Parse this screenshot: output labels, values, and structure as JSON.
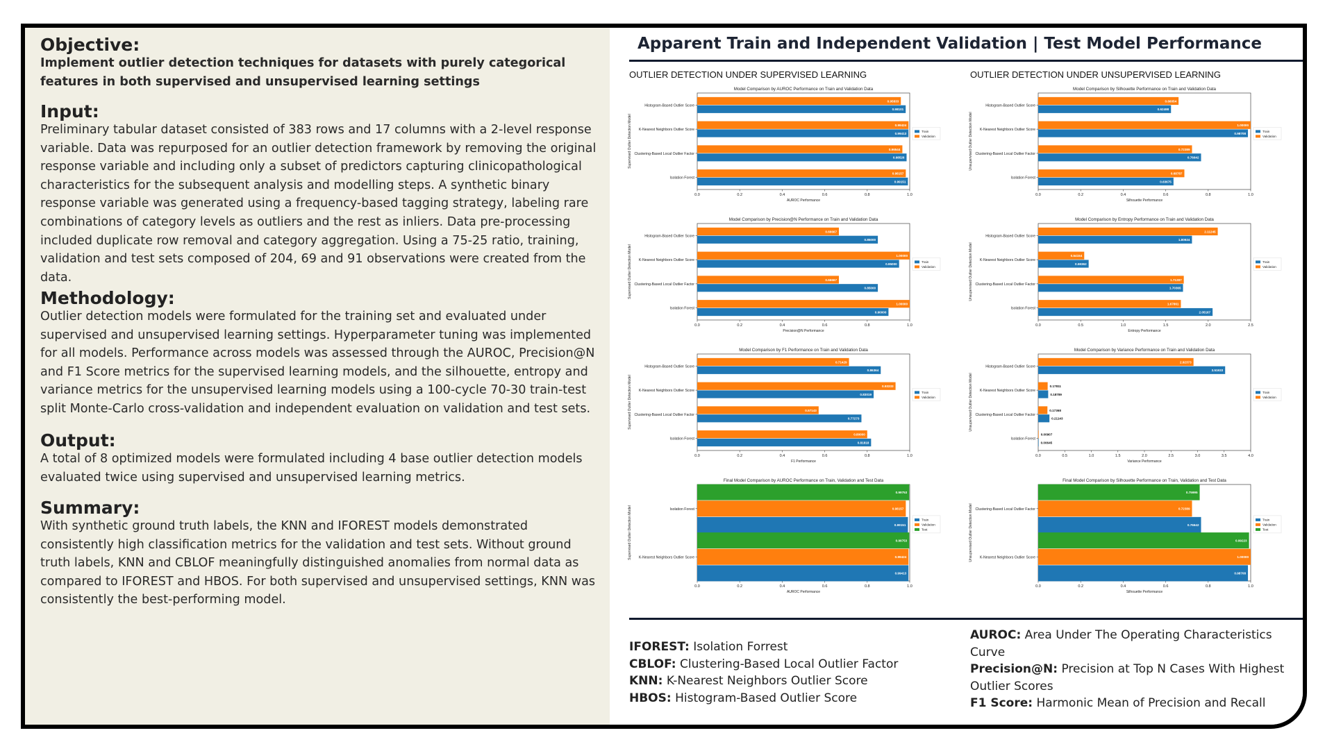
{
  "sections": {
    "objective": {
      "heading": "Objective:",
      "text": "Implement outlier detection techniques for datasets with purely categorical features in both supervised and unsupervised learning settings"
    },
    "input": {
      "heading": "Input:",
      "text": "Preliminary tabular dataset consisted of 383 rows and 17 columns with a 2-level response variable. Data was repurposed for an outlier detection framework by removing the original response variable and including only a subset of predictors capturing clinicopathological characteristics for the subsequent analysis and modelling steps. A synthetic binary response variable was generated using a frequency-based tagging strategy, labeling rare combinations of category levels as outliers and the rest as inliers. Data pre-processing included duplicate row removal and category aggregation. Using a 75-25 ratio, training, validation and test sets composed of 204, 69 and 91 observations were created from the data."
    },
    "methodology": {
      "heading": "Methodology:",
      "text": "Outlier detection models were formulated for the training set and evaluated under supervised and unsupervised learning settings. Hyperparameter tuning was implemented for all models. Performance across models was assessed through the AUROC, Precision@N and F1 Score metrics for the supervised learning models, and the silhouette, entropy and variance metrics for the unsupervised learning models using a 100-cycle 70-30 train-test split Monte-Carlo cross-validation and independent evaluation on validation and test sets."
    },
    "output": {
      "heading": "Output:",
      "text": "A total of 8 optimized models were formulated including 4 base outlier detection models evaluated twice using supervised and unsupervised learning metrics."
    },
    "summary": {
      "heading": "Summary:",
      "text": "With synthetic ground truth labels, the KNN and IFOREST models demonstrated consistently high classification metrics for the validation and test sets. Without ground truth labels, KNN and CBLOF meaningfully distinguished anomalies from normal data as compared to IFOREST and HBOS. For both supervised and unsupervised settings, KNN was consistently the best-performing model."
    }
  },
  "panel": {
    "title": "Apparent Train and Independent Validation | Test Model Performance",
    "supervised_heading": "OUTLIER DETECTION UNDER SUPERVISED LEARNING",
    "unsupervised_heading": "OUTLIER DETECTION UNDER UNSUPERVISED LEARNING"
  },
  "colors": {
    "train": "#1f77b4",
    "validation": "#ff7f0e",
    "test": "#2ca02c"
  },
  "legend_left": [
    {
      "abbr": "IFOREST:",
      "full": "Isolation Forrest"
    },
    {
      "abbr": "CBLOF:",
      "full": "Clustering-Based Local Outlier Factor"
    },
    {
      "abbr": "KNN:",
      "full": "K-Nearest Neighbors Outlier Score"
    },
    {
      "abbr": "HBOS:",
      "full": "Histogram-Based Outlier Score"
    }
  ],
  "legend_right": [
    {
      "abbr": "AUROC:",
      "full": "Area Under The Operating Characteristics Curve"
    },
    {
      "abbr": "Precision@N:",
      "full": "Precision at Top N Cases With Highest Outlier Scores"
    },
    {
      "abbr": "F1 Score:",
      "full": "Harmonic Mean of Precision and Recall"
    }
  ],
  "chart_data": [
    {
      "id": "sup-auroc",
      "type": "bar",
      "orientation": "horizontal",
      "title": "Model Comparison by AUROC Performance on Train and Validation Data",
      "xlabel": "AUROC Performance",
      "ylabel": "Supervised Outlier Detection Model",
      "xlim": [
        0,
        1.0
      ],
      "xticks": [
        0.0,
        0.2,
        0.4,
        0.6,
        0.8,
        1.0
      ],
      "xtick_labels": [
        "0.0",
        "0.2",
        "0.4",
        "0.6",
        "0.8",
        "1.0"
      ],
      "categories": [
        "Histogram-Based Outlier Score",
        "K-Nearest Neighbors Outlier Score",
        "Clustering-Based Local Outlier Factor",
        "Isolation Forest"
      ],
      "series": [
        {
          "name": "Train",
          "values": [
            0.98101,
            0.99413,
            0.98526,
            0.99151
          ],
          "labels": [
            "0.98101",
            "0.99413",
            "0.98526",
            "0.99151"
          ]
        },
        {
          "name": "Validation",
          "values": [
            0.95833,
            0.99424,
            0.96544,
            0.98157
          ],
          "labels": [
            "0.95833",
            "0.99424",
            "0.96544",
            "0.98157"
          ]
        }
      ],
      "legend": "right"
    },
    {
      "id": "unsup-silhouette",
      "type": "bar",
      "orientation": "horizontal",
      "title": "Model Comparison by Silhouette Performance on Train and Validation Data",
      "xlabel": "Silhouette Performance",
      "ylabel": "Unsupervised Outlier Detection Model",
      "xlim": [
        0,
        1.0
      ],
      "xticks": [
        0.0,
        0.2,
        0.4,
        0.6,
        0.8,
        1.0
      ],
      "xtick_labels": [
        "0.0",
        "0.2",
        "0.4",
        "0.6",
        "0.8",
        "1.0"
      ],
      "categories": [
        "Histogram-Based Outlier Score",
        "K-Nearest Neighbors Outlier Score",
        "Clustering-Based Local Outlier Factor",
        "Isolation Forest"
      ],
      "series": [
        {
          "name": "Train",
          "values": [
            0.62498,
            0.98708,
            0.76642,
            0.63675
          ],
          "labels": [
            "0.62498",
            "0.98708",
            "0.76642",
            "0.63675"
          ]
        },
        {
          "name": "Validation",
          "values": [
            0.66054,
            1.0,
            0.72389,
            0.68787
          ],
          "labels": [
            "0.66054",
            "1.00000",
            "0.72389",
            "0.68787"
          ]
        }
      ],
      "legend": "right"
    },
    {
      "id": "sup-precision",
      "type": "bar",
      "orientation": "horizontal",
      "title": "Model Comparison by Precision@N Performance on Train and Validation Data",
      "xlabel": "Precision@N Performance",
      "ylabel": "Supervised Outlier Detection Model",
      "xlim": [
        0,
        1.0
      ],
      "xticks": [
        0.0,
        0.2,
        0.4,
        0.6,
        0.8,
        1.0
      ],
      "xtick_labels": [
        "0.0",
        "0.2",
        "0.4",
        "0.6",
        "0.8",
        "1.0"
      ],
      "categories": [
        "Histogram-Based Outlier Score",
        "K-Nearest Neighbors Outlier Score",
        "Clustering-Based Local Outlier Factor",
        "Isolation Forest"
      ],
      "series": [
        {
          "name": "Train",
          "values": [
            0.85,
            0.95,
            0.85,
            0.9
          ],
          "labels": [
            "0.85000",
            "0.95000",
            "0.85000",
            "0.90000"
          ]
        },
        {
          "name": "Validation",
          "values": [
            0.66667,
            1.0,
            0.66667,
            1.0
          ],
          "labels": [
            "0.66667",
            "1.00000",
            "0.66667",
            "1.00000"
          ]
        }
      ],
      "legend": "right"
    },
    {
      "id": "unsup-entropy",
      "type": "bar",
      "orientation": "horizontal",
      "title": "Model Comparison by Entropy Performance on Train and Validation Data",
      "xlabel": "Entropy Performance",
      "ylabel": "Unsupervised Outlier Detection Model",
      "xlim": [
        0,
        2.5
      ],
      "xticks": [
        0.0,
        0.5,
        1.0,
        1.5,
        2.0,
        2.5
      ],
      "xtick_labels": [
        "0.0",
        "0.5",
        "1.0",
        "1.5",
        "2.0",
        "2.5"
      ],
      "categories": [
        "Histogram-Based Outlier Score",
        "K-Nearest Neighbors Outlier Score",
        "Clustering-Based Local Outlier Factor",
        "Isolation Forest"
      ],
      "series": [
        {
          "name": "Train",
          "values": [
            1.80924,
            0.59362,
            1.70365,
            2.05167
          ],
          "labels": [
            "1.80924",
            "0.59362",
            "1.70365",
            "2.05167"
          ]
        },
        {
          "name": "Validation",
          "values": [
            2.11245,
            0.54154,
            1.71287,
            1.67861
          ],
          "labels": [
            "2.11245",
            "0.54154",
            "1.71287",
            "1.67861"
          ]
        }
      ],
      "legend": "right"
    },
    {
      "id": "sup-f1",
      "type": "bar",
      "orientation": "horizontal",
      "title": "Model Comparison by F1 Performance on Train and Validation Data",
      "xlabel": "F1 Performance",
      "ylabel": "Supervised Outlier Detection Model",
      "xlim": [
        0,
        1.0
      ],
      "xticks": [
        0.0,
        0.2,
        0.4,
        0.6,
        0.8,
        1.0
      ],
      "xtick_labels": [
        "0.0",
        "0.2",
        "0.4",
        "0.6",
        "0.8",
        "1.0"
      ],
      "categories": [
        "Histogram-Based Outlier Score",
        "K-Nearest Neighbors Outlier Score",
        "Clustering-Based Local Outlier Factor",
        "Isolation Forest"
      ],
      "series": [
        {
          "name": "Train",
          "values": [
            0.86364,
            0.83019,
            0.77273,
            0.81818
          ],
          "labels": [
            "0.86364",
            "0.83019",
            "0.77273",
            "0.81818"
          ]
        },
        {
          "name": "Validation",
          "values": [
            0.71429,
            0.93333,
            0.57143,
            0.8
          ],
          "labels": [
            "0.71429",
            "0.93333",
            "0.57143",
            "0.80000"
          ]
        }
      ],
      "legend": "right"
    },
    {
      "id": "unsup-variance",
      "type": "bar",
      "orientation": "horizontal",
      "title": "Model Comparison by Variance Performance on Train and Validation Data",
      "xlabel": "Variance Performance",
      "ylabel": "Unsupervised Outlier Detection Model",
      "xlim": [
        0,
        4.0
      ],
      "xticks": [
        0.0,
        0.5,
        1.0,
        1.5,
        2.0,
        2.5,
        3.0,
        3.5,
        4.0
      ],
      "xtick_labels": [
        "0.0",
        "0.5",
        "1.0",
        "1.5",
        "2.0",
        "2.5",
        "3.0",
        "3.5",
        "4.0"
      ],
      "categories": [
        "Histogram-Based Outlier Score",
        "K-Nearest Neighbors Outlier Score",
        "Clustering-Based Local Outlier Factor",
        "Isolation Forest"
      ],
      "series": [
        {
          "name": "Train",
          "values": [
            3.51933,
            0.18789,
            0.21143,
            0.00645
          ],
          "labels": [
            "3.51933",
            "0.18789",
            "0.21143",
            "0.00645"
          ]
        },
        {
          "name": "Validation",
          "values": [
            2.92373,
            0.17811,
            0.17368,
            0.00907
          ],
          "labels": [
            "2.92373",
            "0.17811",
            "0.17368",
            "0.00907"
          ]
        }
      ],
      "legend": "right"
    },
    {
      "id": "final-auroc",
      "type": "bar",
      "orientation": "horizontal",
      "title": "Final Model Comparison by AUROC Performance on Train, Validation and Test Data",
      "xlabel": "AUROC Performance",
      "ylabel": "Supervised Outlier Detection Model",
      "xlim": [
        0,
        1.0
      ],
      "xticks": [
        0.0,
        0.2,
        0.4,
        0.6,
        0.8,
        1.0
      ],
      "xtick_labels": [
        "0.0",
        "0.2",
        "0.4",
        "0.6",
        "0.8",
        "1.0"
      ],
      "categories": [
        "Isolation Forest",
        "K-Nearest Neighbors Outlier Score"
      ],
      "series": [
        {
          "name": "Train",
          "values": [
            0.99151,
            0.99413
          ],
          "labels": [
            "0.99151",
            "0.99413"
          ]
        },
        {
          "name": "Validation",
          "values": [
            0.98157,
            0.99424
          ],
          "labels": [
            "0.98157",
            "0.99424"
          ]
        },
        {
          "name": "Test",
          "values": [
            0.99753,
            0.99753
          ],
          "labels": [
            "0.99753",
            "0.99753"
          ]
        }
      ],
      "legend": "right"
    },
    {
      "id": "final-silhouette",
      "type": "bar",
      "orientation": "horizontal",
      "title": "Final Model Comparison by Silhouette Performance on Train, Validation and Test Data",
      "xlabel": "Silhouette Performance",
      "ylabel": "Unsupervised Outlier Detection Model",
      "xlim": [
        0,
        1.0
      ],
      "xticks": [
        0.0,
        0.2,
        0.4,
        0.6,
        0.8,
        1.0
      ],
      "xtick_labels": [
        "0.0",
        "0.2",
        "0.4",
        "0.6",
        "0.8",
        "1.0"
      ],
      "categories": [
        "Clustering-Based Local Outlier Factor",
        "K-Nearest Neighbors Outlier Score"
      ],
      "series": [
        {
          "name": "Train",
          "values": [
            0.76642,
            0.98708
          ],
          "labels": [
            "0.76642",
            "0.98708"
          ]
        },
        {
          "name": "Validation",
          "values": [
            0.72389,
            1.0
          ],
          "labels": [
            "0.72389",
            "1.00000"
          ]
        },
        {
          "name": "Test",
          "values": [
            0.75995,
            0.99223
          ],
          "labels": [
            "0.75995",
            "0.99223"
          ]
        }
      ],
      "legend": "right"
    }
  ]
}
